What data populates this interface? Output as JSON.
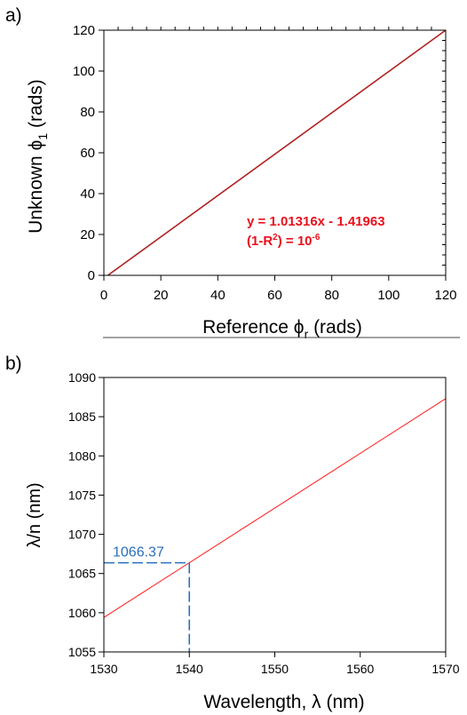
{
  "chart_data": [
    {
      "type": "line",
      "panel_label": "a)",
      "xlabel": "Reference ϕ",
      "xlabel_sub": "r",
      "xlabel_unit": " (rads)",
      "ylabel": "Unknown ϕ",
      "ylabel_sub": "1",
      "ylabel_unit": " (rads)",
      "xlim": [
        0,
        120
      ],
      "ylim": [
        0,
        120
      ],
      "xticks": [
        "0",
        "20",
        "40",
        "60",
        "80",
        "100",
        "120"
      ],
      "yticks": [
        "0",
        "20",
        "40",
        "60",
        "80",
        "100",
        "120"
      ],
      "series": [
        {
          "x": [
            1.4,
            120
          ],
          "y": [
            0,
            120.16
          ],
          "color": "#b22222"
        }
      ],
      "annotation": {
        "line1": "y = 1.01316x - 1.41963",
        "line2_prefix": "(1-R",
        "line2_sup": "2",
        "line2_mid": ") = 10",
        "line2_exp": "-6",
        "color": "#e8101c"
      }
    },
    {
      "type": "line",
      "panel_label": "b)",
      "xlabel": "Wavelength, λ (nm)",
      "ylabel": "λ/n (nm)",
      "xlim": [
        1530,
        1570
      ],
      "ylim": [
        1055,
        1090
      ],
      "xticks": [
        "1530",
        "1540",
        "1550",
        "1560",
        "1570"
      ],
      "yticks": [
        "1055",
        "1060",
        "1065",
        "1070",
        "1075",
        "1080",
        "1085",
        "1090"
      ],
      "series": [
        {
          "x": [
            1530,
            1570
          ],
          "y": [
            1059.4,
            1087.3
          ],
          "color": "#ff1f1f"
        }
      ],
      "marker": {
        "x": 1540,
        "y": 1066.37,
        "label": "1066.37",
        "color": "#2a6fbd"
      }
    }
  ]
}
